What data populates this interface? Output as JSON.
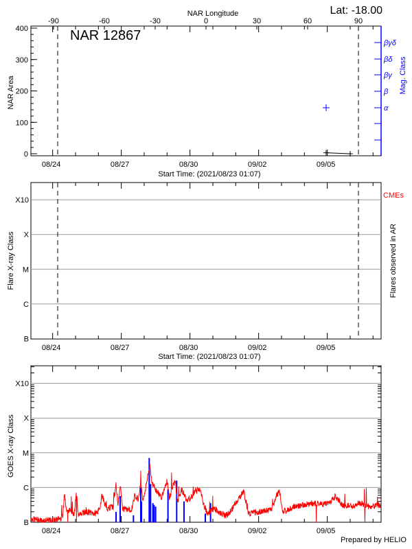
{
  "header": {
    "top_axis_title": "NAR Longitude",
    "latitude": "Lat: -18.00",
    "region_label": "NAR 12867",
    "footer": "Prepared by HELIO"
  },
  "colors": {
    "axis": "#000000",
    "mag": "#0000ff",
    "goes": "#ff0000",
    "flares": "#0000ff",
    "grid": "#999999",
    "cme": "#ff0000"
  },
  "chart_data": [
    {
      "type": "scatter",
      "title": "NAR 12867",
      "ylabel": "NAR Area",
      "ylabel_right": "Mag. Class",
      "xlabel": "Start Time: (2021/08/23 01:07)",
      "x_unit": "days since 2021/08/23 01:07",
      "xlim": [
        0,
        15.3
      ],
      "ylim": [
        0,
        400
      ],
      "yticks": [
        "0",
        "100",
        "200",
        "300",
        "400"
      ],
      "ytick_values": [
        0,
        100,
        200,
        300,
        400
      ],
      "top_axis": {
        "title": "NAR Longitude",
        "ticks": [
          "-90",
          "-60",
          "-30",
          "0",
          "30",
          "60",
          "90"
        ],
        "values": [
          -90,
          -60,
          -30,
          0,
          30,
          60,
          90
        ],
        "range": [
          -90,
          90
        ]
      },
      "xtick_labels": [
        "08/24",
        "08/27",
        "08/30",
        "09/02",
        "09/05"
      ],
      "xtick_days": [
        0.95,
        3.95,
        6.95,
        9.95,
        12.95
      ],
      "limb_lines_days": [
        0.05,
        13.38
      ],
      "mag_classes": [
        "βγδ",
        "βδ",
        "βγ",
        "β",
        "α",
        "",
        ""
      ],
      "area_series": {
        "x": [
          12.9,
          13.95
        ],
        "y": [
          3,
          0
        ]
      },
      "mag_series": {
        "x": [
          12.9
        ],
        "class": [
          "α"
        ]
      }
    },
    {
      "type": "scatter",
      "ylabel": "Flare X-ray Class",
      "ylabel_right": "Flares observed in AR",
      "legend": "CMEs",
      "xlabel": "Start Time: (2021/08/23 01:07)",
      "xlim": [
        0,
        15.3
      ],
      "yticks": [
        "B",
        "C",
        "M",
        "X",
        "X10"
      ],
      "ytick_logflux": [
        -7,
        -6,
        -5,
        -4,
        -3
      ],
      "xtick_labels": [
        "08/24",
        "08/27",
        "08/30",
        "09/02",
        "09/05"
      ],
      "flares": []
    },
    {
      "type": "line",
      "ylabel": "GOES X-ray Class",
      "xlim": [
        0,
        15.3
      ],
      "yticks": [
        "B",
        "C",
        "M",
        "X",
        "X10"
      ],
      "ytick_logflux": [
        -7,
        -6,
        -5,
        -4,
        -3
      ],
      "xtick_labels": [
        "08/24",
        "08/27",
        "08/30",
        "09/02",
        "09/05"
      ],
      "goes_logflux": [
        [
          0.0,
          -6.9
        ],
        [
          0.5,
          -6.95
        ],
        [
          1.0,
          -6.95
        ],
        [
          1.4,
          -6.85
        ],
        [
          1.47,
          -6.1
        ],
        [
          1.52,
          -6.6
        ],
        [
          1.9,
          -6.75
        ],
        [
          1.99,
          -6.05
        ],
        [
          2.05,
          -6.75
        ],
        [
          2.4,
          -6.7
        ],
        [
          2.8,
          -6.75
        ],
        [
          3.0,
          -6.65
        ],
        [
          3.1,
          -6.2
        ],
        [
          3.3,
          -6.6
        ],
        [
          3.6,
          -6.55
        ],
        [
          3.72,
          -5.9
        ],
        [
          3.8,
          -6.5
        ],
        [
          3.9,
          -5.9
        ],
        [
          4.0,
          -6.6
        ],
        [
          4.4,
          -6.65
        ],
        [
          4.55,
          -6.2
        ],
        [
          4.7,
          -6.35
        ],
        [
          4.8,
          -5.8
        ],
        [
          4.9,
          -6.4
        ],
        [
          5.2,
          -5.35
        ],
        [
          5.3,
          -5.9
        ],
        [
          5.5,
          -6.1
        ],
        [
          5.7,
          -6.3
        ],
        [
          5.95,
          -5.8
        ],
        [
          6.05,
          -6.3
        ],
        [
          6.3,
          -5.8
        ],
        [
          6.4,
          -6.4
        ],
        [
          6.6,
          -6.05
        ],
        [
          6.8,
          -6.35
        ],
        [
          7.0,
          -6.3
        ],
        [
          7.2,
          -6.1
        ],
        [
          7.4,
          -6.05
        ],
        [
          7.5,
          -6.4
        ],
        [
          7.7,
          -6.75
        ],
        [
          8.0,
          -6.6
        ],
        [
          8.3,
          -6.75
        ],
        [
          8.6,
          -6.8
        ],
        [
          9.3,
          -6.1
        ],
        [
          9.5,
          -6.75
        ],
        [
          10.0,
          -6.7
        ],
        [
          10.5,
          -6.65
        ],
        [
          10.85,
          -6.05
        ],
        [
          11.0,
          -6.7
        ],
        [
          11.5,
          -6.55
        ],
        [
          12.0,
          -6.5
        ],
        [
          12.3,
          -6.45
        ],
        [
          12.6,
          -6.5
        ],
        [
          13.0,
          -6.45
        ],
        [
          13.3,
          -6.25
        ],
        [
          13.6,
          -6.5
        ],
        [
          14.0,
          -6.55
        ],
        [
          14.4,
          -6.45
        ],
        [
          14.8,
          -6.55
        ],
        [
          15.3,
          -6.5
        ]
      ],
      "flare_events_logflux": [
        [
          3.72,
          -6.7
        ],
        [
          3.9,
          -6.25
        ],
        [
          4.48,
          -6.8
        ],
        [
          4.8,
          -6.0
        ],
        [
          4.83,
          -6.4
        ],
        [
          5.17,
          -5.15
        ],
        [
          5.23,
          -5.9
        ],
        [
          5.33,
          -6.45
        ],
        [
          5.38,
          -6.5
        ],
        [
          5.45,
          -6.55
        ],
        [
          5.99,
          -6.05
        ],
        [
          6.37,
          -5.8
        ],
        [
          6.69,
          -6.4
        ],
        [
          7.62,
          -6.75
        ],
        [
          7.85,
          -6.45
        ]
      ]
    }
  ]
}
